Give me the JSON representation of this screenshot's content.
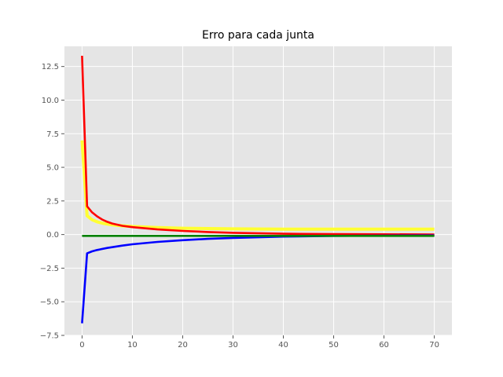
{
  "chart_data": {
    "type": "line",
    "title": "Erro para cada junta",
    "xlabel": "",
    "ylabel": "",
    "xlim": [
      -3.5,
      73.5
    ],
    "ylim": [
      -7.5,
      14.0
    ],
    "xticks": [
      0,
      10,
      20,
      30,
      40,
      50,
      60,
      70
    ],
    "xtick_labels": [
      "0",
      "10",
      "20",
      "30",
      "40",
      "50",
      "60",
      "70"
    ],
    "yticks": [
      -7.5,
      -5.0,
      -2.5,
      0.0,
      2.5,
      5.0,
      7.5,
      10.0,
      12.5
    ],
    "ytick_labels": [
      "−7.5",
      "−5.0",
      "−2.5",
      "0.0",
      "2.5",
      "5.0",
      "7.5",
      "10.0",
      "12.5"
    ],
    "grid": true,
    "background": "#e5e5e5",
    "series": [
      {
        "color": "#ffff33",
        "x": [
          0,
          1,
          2,
          3,
          4,
          5,
          6,
          8,
          10,
          15,
          20,
          30,
          40,
          50,
          60,
          70
        ],
        "y": [
          7.0,
          1.4,
          1.1,
          0.95,
          0.85,
          0.78,
          0.72,
          0.65,
          0.6,
          0.52,
          0.47,
          0.42,
          0.4,
          0.4,
          0.4,
          0.4
        ]
      },
      {
        "color": "#ff0000",
        "x": [
          0,
          1,
          2,
          3,
          4,
          5,
          6,
          8,
          10,
          15,
          20,
          25,
          30,
          40,
          50,
          60,
          70
        ],
        "y": [
          13.3,
          2.1,
          1.65,
          1.35,
          1.12,
          0.95,
          0.82,
          0.65,
          0.55,
          0.38,
          0.27,
          0.19,
          0.13,
          0.06,
          0.03,
          0.02,
          0.01
        ]
      },
      {
        "color": "#0000ff",
        "x": [
          0,
          1,
          2,
          3,
          5,
          8,
          10,
          15,
          20,
          25,
          30,
          40,
          50,
          60,
          70
        ],
        "y": [
          -6.6,
          -1.4,
          -1.25,
          -1.15,
          -1.0,
          -0.82,
          -0.72,
          -0.55,
          -0.42,
          -0.32,
          -0.25,
          -0.15,
          -0.1,
          -0.08,
          -0.07
        ]
      },
      {
        "color": "#008000",
        "x": [
          0,
          70
        ],
        "y": [
          -0.1,
          -0.1
        ]
      }
    ]
  }
}
